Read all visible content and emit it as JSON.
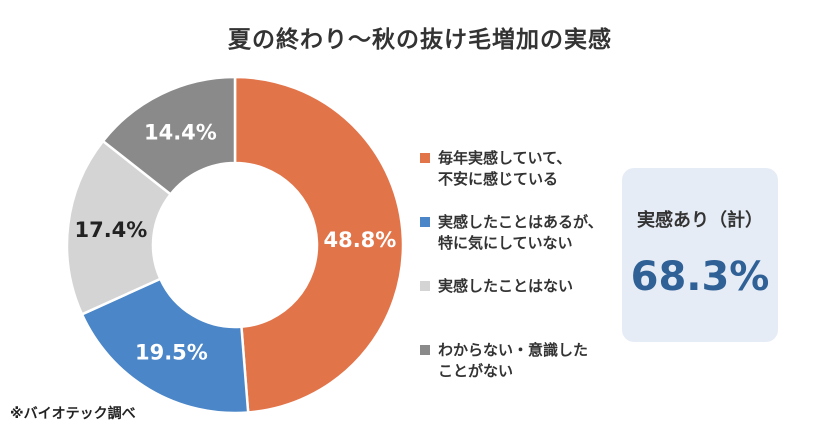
{
  "title": "夏の終わり～秋の抜け毛増加の実感",
  "chart_data": {
    "type": "pie",
    "variant": "donut",
    "series": [
      {
        "name": "毎年実感していて、\n不安に感じている",
        "value": 48.8,
        "label": "48.8%",
        "color": "#e2744a",
        "label_color": "#ffffff"
      },
      {
        "name": "実感したことはあるが、\n特に気にしていない",
        "value": 19.5,
        "label": "19.5%",
        "color": "#4a86c8",
        "label_color": "#ffffff"
      },
      {
        "name": "実感したことはない",
        "value": 17.4,
        "label": "17.4%",
        "color": "#d4d4d4",
        "label_color": "#222222"
      },
      {
        "name": "わからない・意識した\nことがない",
        "value": 14.4,
        "label": "14.4%",
        "color": "#8a8a8a",
        "label_color": "#ffffff"
      }
    ],
    "start_angle_deg": 0,
    "direction": "clockwise",
    "legend_position": "right"
  },
  "summary": {
    "label": "実感あり（計）",
    "value": "68.3%"
  },
  "footnote": "※バイオテック調べ"
}
